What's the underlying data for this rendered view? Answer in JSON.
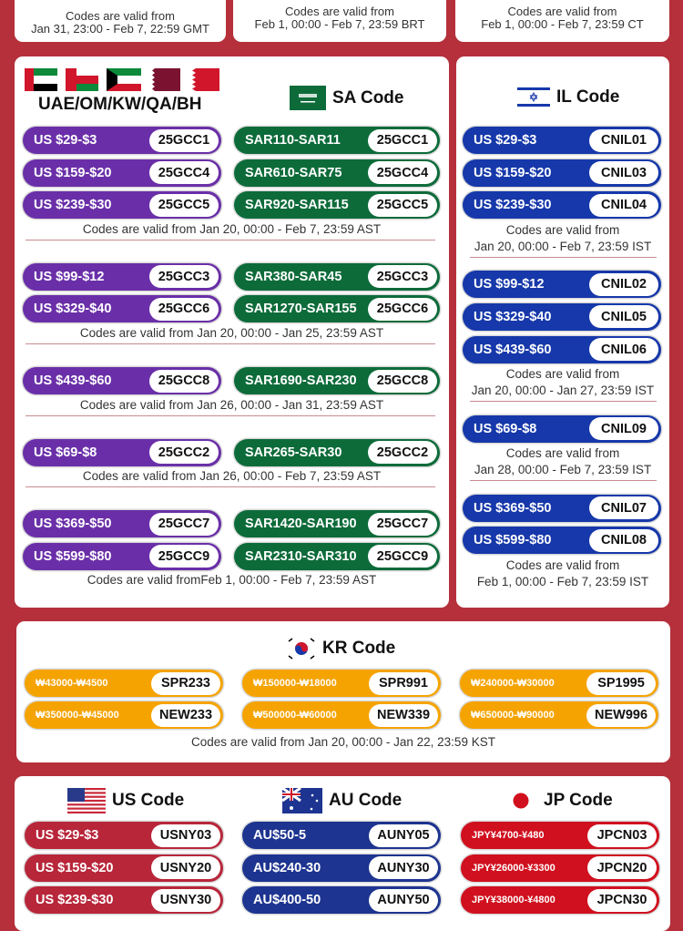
{
  "colors": {
    "background": "#b5303b",
    "uae": "#6a2fa8",
    "sa": "#0d6b3a",
    "il": "#1638aa",
    "kr": "#f5a300",
    "us": "#b8263a",
    "au": "#1d3490",
    "jp": "#d0101e"
  },
  "top_cards": [
    {
      "line1": "Codes are valid from",
      "line2": "Jan 31, 23:00 - Feb 7, 22:59 GMT"
    },
    {
      "line1": "Codes are valid from",
      "line2": "Feb 1, 00:00 - Feb 7, 23:59 BRT"
    },
    {
      "line1": "Codes are valid from",
      "line2": "Feb 1, 00:00 - Feb 7, 23:59 CT"
    }
  ],
  "gulf": {
    "uae_title": "UAE/OM/KW/QA/BH",
    "sa_title": "SA Code",
    "flags": [
      "uae-flag",
      "oman-flag",
      "kuwait-flag",
      "qatar-flag",
      "bahrain-flag",
      "saudi-flag"
    ],
    "groups": [
      {
        "rows": [
          {
            "uae": {
              "range": "US $29-$3",
              "code": "25GCC1"
            },
            "sa": {
              "range": "SAR110-SAR11",
              "code": "25GCC1"
            }
          },
          {
            "uae": {
              "range": "US $159-$20",
              "code": "25GCC4"
            },
            "sa": {
              "range": "SAR610-SAR75",
              "code": "25GCC4"
            }
          },
          {
            "uae": {
              "range": "US $239-$30",
              "code": "25GCC5"
            },
            "sa": {
              "range": "SAR920-SAR115",
              "code": "25GCC5"
            }
          }
        ],
        "note": "Codes are valid from Jan 20, 00:00 - Feb 7, 23:59 AST"
      },
      {
        "rows": [
          {
            "uae": {
              "range": "US $99-$12",
              "code": "25GCC3"
            },
            "sa": {
              "range": "SAR380-SAR45",
              "code": "25GCC3"
            }
          },
          {
            "uae": {
              "range": "US $329-$40",
              "code": "25GCC6"
            },
            "sa": {
              "range": "SAR1270-SAR155",
              "code": "25GCC6"
            }
          }
        ],
        "note": "Codes are valid from Jan 20, 00:00 - Jan 25, 23:59 AST"
      },
      {
        "rows": [
          {
            "uae": {
              "range": "US $439-$60",
              "code": "25GCC8"
            },
            "sa": {
              "range": "SAR1690-SAR230",
              "code": "25GCC8"
            }
          }
        ],
        "note": "Codes are valid from Jan 26, 00:00 - Jan 31, 23:59 AST"
      },
      {
        "rows": [
          {
            "uae": {
              "range": "US $69-$8",
              "code": "25GCC2"
            },
            "sa": {
              "range": "SAR265-SAR30",
              "code": "25GCC2"
            }
          }
        ],
        "note": "Codes are valid from Jan 26, 00:00 - Feb 7, 23:59 AST"
      },
      {
        "rows": [
          {
            "uae": {
              "range": "US $369-$50",
              "code": "25GCC7"
            },
            "sa": {
              "range": "SAR1420-SAR190",
              "code": "25GCC7"
            }
          },
          {
            "uae": {
              "range": "US $599-$80",
              "code": "25GCC9"
            },
            "sa": {
              "range": "SAR2310-SAR310",
              "code": "25GCC9"
            }
          }
        ],
        "note": "Codes are valid fromFeb 1, 00:00 - Feb 7, 23:59 AST"
      }
    ]
  },
  "il": {
    "title": "IL Code",
    "groups": [
      {
        "rows": [
          {
            "range": "US $29-$3",
            "code": "CNIL01"
          },
          {
            "range": "US $159-$20",
            "code": "CNIL03"
          },
          {
            "range": "US $239-$30",
            "code": "CNIL04"
          }
        ],
        "note1": "Codes are valid from",
        "note2": "Jan 20, 00:00 - Feb 7, 23:59 IST"
      },
      {
        "rows": [
          {
            "range": "US $99-$12",
            "code": "CNIL02"
          },
          {
            "range": "US $329-$40",
            "code": "CNIL05"
          },
          {
            "range": "US $439-$60",
            "code": "CNIL06"
          }
        ],
        "note1": "Codes are valid from",
        "note2": "Jan 20, 00:00 - Jan 27, 23:59 IST"
      },
      {
        "rows": [
          {
            "range": "US $69-$8",
            "code": "CNIL09"
          }
        ],
        "note1": "Codes are valid from",
        "note2": "Jan 28, 00:00 - Feb 7, 23:59 IST"
      },
      {
        "rows": [
          {
            "range": "US $369-$50",
            "code": "CNIL07"
          },
          {
            "range": "US $599-$80",
            "code": "CNIL08"
          }
        ],
        "note1": "Codes are valid from",
        "note2": "Feb 1, 00:00 - Feb 7, 23:59 IST"
      }
    ]
  },
  "kr": {
    "title": "KR Code",
    "pills": [
      {
        "range": "₩43000-₩4500",
        "code": "SPR233"
      },
      {
        "range": "₩150000-₩18000",
        "code": "SPR991"
      },
      {
        "range": "₩240000-₩30000",
        "code": "SP1995"
      },
      {
        "range": "₩350000-₩45000",
        "code": "NEW233"
      },
      {
        "range": "₩500000-₩60000",
        "code": "NEW339"
      },
      {
        "range": "₩650000-₩90000",
        "code": "NEW996"
      }
    ],
    "note": "Codes are valid from Jan 20, 00:00 - Jan 22, 23:59 KST"
  },
  "bottom": {
    "us": {
      "title": "US Code",
      "pills": [
        {
          "range": "US $29-$3",
          "code": "USNY03"
        },
        {
          "range": "US $159-$20",
          "code": "USNY20"
        },
        {
          "range": "US $239-$30",
          "code": "USNY30"
        }
      ]
    },
    "au": {
      "title": "AU Code",
      "pills": [
        {
          "range": "AU$50-5",
          "code": "AUNY05"
        },
        {
          "range": "AU$240-30",
          "code": "AUNY30"
        },
        {
          "range": "AU$400-50",
          "code": "AUNY50"
        }
      ]
    },
    "jp": {
      "title": "JP Code",
      "pills": [
        {
          "range": "JPY¥4700-¥480",
          "code": "JPCN03"
        },
        {
          "range": "JPY¥26000-¥3300",
          "code": "JPCN20"
        },
        {
          "range": "JPY¥38000-¥4800",
          "code": "JPCN30"
        }
      ]
    }
  }
}
